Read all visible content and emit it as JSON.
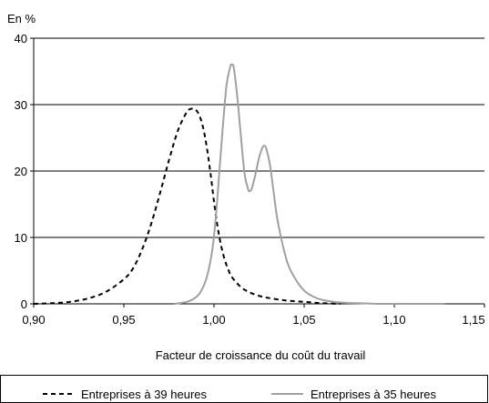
{
  "chart_data": {
    "type": "line",
    "unit_label": "En %",
    "xlabel": "Facteur de croissance du coût du travail",
    "ylabel": "",
    "xlim": [
      0.9,
      1.15
    ],
    "ylim": [
      0,
      40
    ],
    "xticks": [
      0.9,
      0.95,
      1.0,
      1.05,
      1.1,
      1.15
    ],
    "xtick_labels": [
      "0,90",
      "0,95",
      "1,00",
      "1,05",
      "1,10",
      "1,15"
    ],
    "yticks": [
      0,
      10,
      20,
      30,
      40
    ],
    "ytick_labels": [
      "0",
      "10",
      "20",
      "30",
      "40"
    ],
    "grid": "horizontal",
    "legend_position": "bottom",
    "series": [
      {
        "name": "Entreprises à 39 heures",
        "style": "dashed",
        "color": "#000000",
        "x": [
          0.9,
          0.91,
          0.92,
          0.93,
          0.94,
          0.95,
          0.955,
          0.96,
          0.965,
          0.97,
          0.975,
          0.98,
          0.985,
          0.988,
          0.99,
          0.992,
          0.994,
          0.996,
          0.998,
          1.0,
          1.002,
          1.004,
          1.006,
          1.008,
          1.01,
          1.015,
          1.02,
          1.025,
          1.03,
          1.04,
          1.05,
          1.06,
          1.07
        ],
        "y": [
          0,
          0.1,
          0.3,
          0.8,
          1.8,
          3.7,
          5.3,
          8.1,
          11.9,
          16.6,
          21.6,
          26.1,
          28.9,
          29.4,
          29.2,
          28.3,
          26.5,
          23.6,
          19.8,
          15.4,
          11.6,
          8.7,
          6.6,
          5.1,
          4.0,
          2.5,
          1.7,
          1.2,
          0.9,
          0.5,
          0.3,
          0.1,
          0
        ]
      },
      {
        "name": "Entreprises à 35 heures",
        "style": "solid",
        "color": "#a0a0a0",
        "x": [
          0.978,
          0.985,
          0.99,
          0.993,
          0.996,
          0.999,
          1.001,
          1.003,
          1.005,
          1.007,
          1.009,
          1.01,
          1.011,
          1.013,
          1.015,
          1.017,
          1.019,
          1.02,
          1.021,
          1.023,
          1.025,
          1.027,
          1.028,
          1.029,
          1.031,
          1.033,
          1.035,
          1.038,
          1.041,
          1.045,
          1.05,
          1.055,
          1.06,
          1.07,
          1.08,
          1.09,
          1.1,
          1.11,
          1.12,
          1.128
        ],
        "y": [
          0,
          0.3,
          1.0,
          2.0,
          4.0,
          8.0,
          13.0,
          20.0,
          27.0,
          33.0,
          35.7,
          36.0,
          35.5,
          31.0,
          25.0,
          19.5,
          17.2,
          17.0,
          17.4,
          19.5,
          22.0,
          23.6,
          23.8,
          23.4,
          21.0,
          17.0,
          13.0,
          9.0,
          6.0,
          3.8,
          2.0,
          1.1,
          0.6,
          0.2,
          0.1,
          0,
          0,
          0,
          0,
          0
        ]
      }
    ]
  }
}
